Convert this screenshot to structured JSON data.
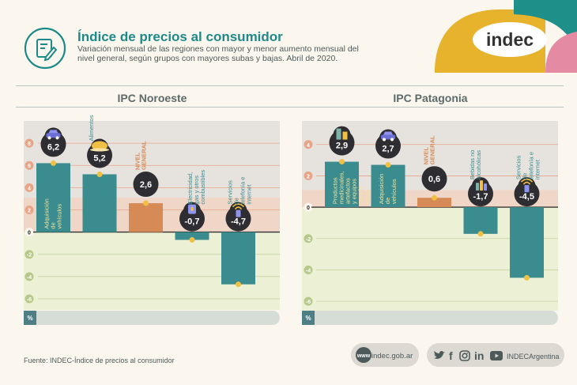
{
  "header": {
    "title": "Índice de precios al consumidor",
    "subtitle": "Variación mensual de las regiones con mayor y menor aumento mensual del nivel general, según grupos con mayores subas y bajas. Abril de 2020.",
    "logo": "indec",
    "header_icon": "clipboard-pen-icon"
  },
  "colors": {
    "teal": "#1d8a8a",
    "bar_teal": "#3a8c8e",
    "bar_orange": "#d68b57",
    "neg_zone": "#ecf0d4",
    "pos_zone": "#e6e3df",
    "band": "#f4d0bc",
    "grid": "#e9a488",
    "bubble": "#2e2e32",
    "dot": "#f0c045",
    "logo_yellow": "#e7b22c",
    "logo_teal": "#1f8f8a",
    "logo_pink": "#e58aa3"
  },
  "chart_data": [
    {
      "type": "bar",
      "title": "IPC Noroeste",
      "categories": [
        "Adquisición de vehículos",
        "Alimentos",
        "NIVEL GENERAL",
        "Electricidad, gas y otros combustibles",
        "Servicios de telefonía e internet"
      ],
      "values": [
        6.2,
        5.2,
        2.6,
        -0.7,
        -4.7
      ],
      "value_labels": [
        "6,2",
        "5,2",
        "2,6",
        "-0,7",
        "-4,7"
      ],
      "highlight_index": 2,
      "yticks": [
        8,
        6,
        4,
        2,
        0,
        -2,
        -4,
        -6
      ],
      "ylim": [
        -7,
        10
      ],
      "ylabel": "%",
      "icons": [
        "car-icon",
        "chicken-icon",
        "",
        "gas-can-icon",
        "phone-wifi-icon"
      ]
    },
    {
      "type": "bar",
      "title": "IPC Patagonia",
      "categories": [
        "Productos medicinales, artefactos y equipos para la salud",
        "Adquisición de vehículos",
        "NIVEL GENERAL",
        "Bebidas no alcohólicas",
        "Servicios de telefonía e internet"
      ],
      "values": [
        2.9,
        2.7,
        0.6,
        -1.7,
        -4.5
      ],
      "value_labels": [
        "2,9",
        "2,7",
        "0,6",
        "-1,7",
        "-4,5"
      ],
      "highlight_index": 2,
      "yticks": [
        4,
        2,
        0,
        -2,
        -4,
        -6
      ],
      "ylim": [
        -6.6,
        5.5
      ],
      "ylabel": "%",
      "icons": [
        "pills-icon",
        "car-icon",
        "",
        "bottles-icon",
        "phone-wifi-icon"
      ]
    }
  ],
  "footer": {
    "source": "Fuente: INDEC-Índice de precios al consumidor",
    "web_badge": "www",
    "website": "indec.gob.ar",
    "social": [
      "twitter-icon",
      "facebook-icon",
      "instagram-icon",
      "linkedin-icon",
      "youtube-icon"
    ],
    "social_text": {
      "facebook": "f",
      "linkedin": "in"
    },
    "handle": "INDECArgentina"
  }
}
